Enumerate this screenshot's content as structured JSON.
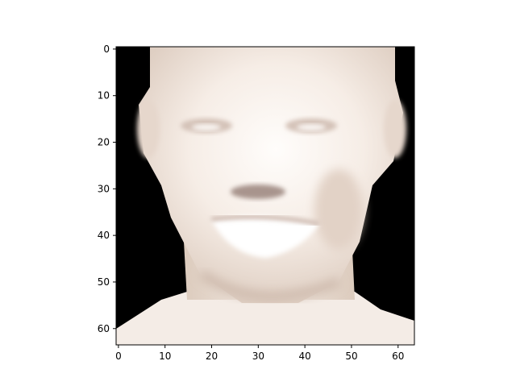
{
  "figure": {
    "subject": "face-image",
    "colors": {
      "background": "#000000",
      "skin_light": "#fcf7f3",
      "skin_mid": "#efe3d9",
      "skin_shadow": "#d9c6b8",
      "feature_dark": "#9a8984",
      "axis": "#000000"
    },
    "x_ticks": [
      "0",
      "10",
      "20",
      "30",
      "40",
      "50",
      "60"
    ],
    "y_ticks": [
      "0",
      "10",
      "20",
      "30",
      "40",
      "50",
      "60"
    ]
  }
}
